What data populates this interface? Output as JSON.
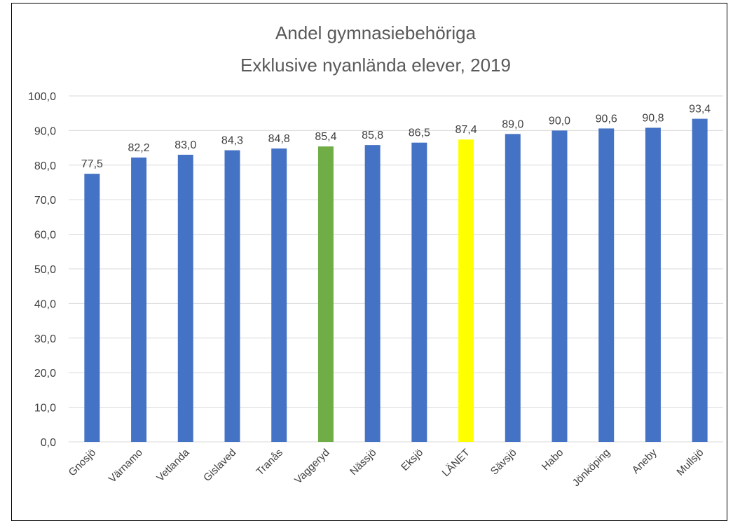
{
  "chart_data": {
    "type": "bar",
    "title": "Andel gymnasiebehöriga",
    "subtitle": "Exklusive nyanlända elever, 2019",
    "xlabel": "",
    "ylabel": "",
    "ylim": [
      0,
      100
    ],
    "yticks": [
      "0,0",
      "10,0",
      "20,0",
      "30,0",
      "40,0",
      "50,0",
      "60,0",
      "70,0",
      "80,0",
      "90,0",
      "100,0"
    ],
    "grid": true,
    "categories": [
      "Gnosjö",
      "Värnamo",
      "Vetlanda",
      "Gislaved",
      "Tranås",
      "Vaggeryd",
      "Nässjö",
      "Eksjö",
      "LÄNET",
      "Sävsjö",
      "Habo",
      "Jönköping",
      "Aneby",
      "Mullsjö"
    ],
    "values": [
      77.5,
      82.2,
      83.0,
      84.3,
      84.8,
      85.4,
      85.8,
      86.5,
      87.4,
      89.0,
      90.0,
      90.6,
      90.8,
      93.4
    ],
    "value_labels": [
      "77,5",
      "82,2",
      "83,0",
      "84,3",
      "84,8",
      "85,4",
      "85,8",
      "86,5",
      "87,4",
      "89,0",
      "90,0",
      "90,6",
      "90,8",
      "93,4"
    ],
    "colors": [
      "#4472C4",
      "#4472C4",
      "#4472C4",
      "#4472C4",
      "#4472C4",
      "#70AD47",
      "#4472C4",
      "#4472C4",
      "#FFFF00",
      "#4472C4",
      "#4472C4",
      "#4472C4",
      "#4472C4",
      "#4472C4"
    ],
    "gridline_color": "#D9D9D9"
  }
}
